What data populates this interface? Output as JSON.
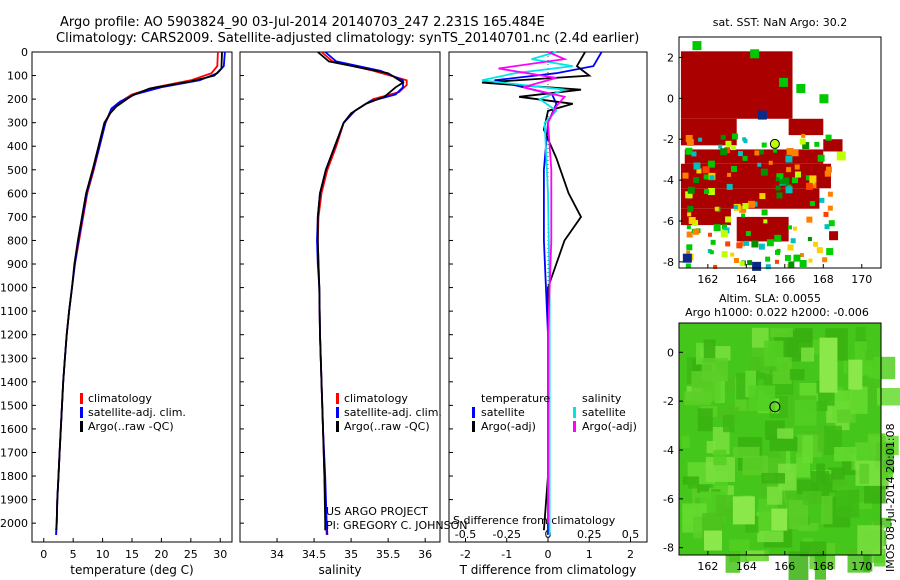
{
  "header": {
    "line1": "Argo profile: AO 5903824_90 03-Jul-2014 20140703_247 2.231S 165.484E",
    "line2": "Climatology: CARS2009. Satellite-adjusted climatology: synTS_20140701.nc (2.4d earlier)"
  },
  "chart_data": [
    {
      "type": "line",
      "name": "temperature",
      "xlabel": "temperature (deg C)",
      "ylabel": "depth",
      "xlim": [
        -2,
        32
      ],
      "ylim": [
        2080,
        0
      ],
      "xticks": [
        0,
        5,
        10,
        15,
        20,
        25,
        30
      ],
      "yticks": [
        0,
        100,
        200,
        300,
        400,
        500,
        600,
        700,
        800,
        900,
        1000,
        1100,
        1200,
        1300,
        1400,
        1500,
        1600,
        1700,
        1800,
        1900,
        2000
      ],
      "legend": [
        "climatology",
        "satellite-adj. clim.",
        "Argo(..raw -QC)"
      ],
      "series": [
        {
          "name": "climatology",
          "color": "#ff0000",
          "points": [
            [
              29.6,
              0
            ],
            [
              29.5,
              60
            ],
            [
              28.5,
              90
            ],
            [
              25,
              120
            ],
            [
              19,
              150
            ],
            [
              15,
              180
            ],
            [
              12.5,
              220
            ],
            [
              11.5,
              250
            ],
            [
              10.5,
              300
            ],
            [
              9.5,
              400
            ],
            [
              8.5,
              500
            ],
            [
              7.4,
              600
            ],
            [
              6.7,
              700
            ],
            [
              6,
              800
            ],
            [
              5.3,
              900
            ],
            [
              4.8,
              1000
            ],
            [
              4.3,
              1100
            ],
            [
              3.9,
              1200
            ],
            [
              3.6,
              1300
            ],
            [
              3.3,
              1400
            ],
            [
              3.1,
              1500
            ],
            [
              2.9,
              1600
            ],
            [
              2.7,
              1700
            ],
            [
              2.5,
              1800
            ],
            [
              2.3,
              1900
            ],
            [
              2.2,
              2000
            ],
            [
              2.1,
              2050
            ]
          ]
        },
        {
          "name": "satellite",
          "color": "#0000ff",
          "points": [
            [
              30.8,
              0
            ],
            [
              30.6,
              60
            ],
            [
              29.5,
              90
            ],
            [
              26.5,
              120
            ],
            [
              20,
              150
            ],
            [
              15.5,
              180
            ],
            [
              13,
              210
            ],
            [
              11.5,
              240
            ],
            [
              10.5,
              300
            ],
            [
              9.5,
              400
            ],
            [
              8.4,
              500
            ],
            [
              7.3,
              600
            ],
            [
              6.6,
              700
            ],
            [
              5.9,
              800
            ],
            [
              5.3,
              900
            ],
            [
              4.8,
              1000
            ],
            [
              4.3,
              1100
            ],
            [
              3.9,
              1200
            ],
            [
              3.6,
              1300
            ],
            [
              3.3,
              1400
            ],
            [
              3.1,
              1500
            ],
            [
              2.9,
              1600
            ],
            [
              2.7,
              1700
            ],
            [
              2.5,
              1800
            ],
            [
              2.3,
              1900
            ],
            [
              2.2,
              2000
            ],
            [
              2.1,
              2050
            ]
          ]
        },
        {
          "name": "Argo",
          "color": "#000000",
          "points": [
            [
              30.3,
              0
            ],
            [
              30.2,
              70
            ],
            [
              29,
              100
            ],
            [
              25,
              125
            ],
            [
              18,
              155
            ],
            [
              15,
              185
            ],
            [
              12.4,
              230
            ],
            [
              11.3,
              260
            ],
            [
              10.3,
              300
            ],
            [
              9.3,
              400
            ],
            [
              8.3,
              500
            ],
            [
              7.2,
              600
            ],
            [
              6.5,
              700
            ],
            [
              5.8,
              800
            ],
            [
              5.2,
              900
            ],
            [
              4.8,
              1000
            ],
            [
              4.3,
              1100
            ],
            [
              3.9,
              1200
            ],
            [
              3.6,
              1300
            ],
            [
              3.3,
              1400
            ],
            [
              3.1,
              1500
            ],
            [
              2.9,
              1600
            ],
            [
              2.7,
              1700
            ],
            [
              2.5,
              1800
            ],
            [
              2.3,
              1900
            ],
            [
              2.2,
              2000
            ],
            [
              2.1,
              2030
            ]
          ]
        }
      ]
    },
    {
      "type": "line",
      "name": "salinity",
      "xlabel": "salinity",
      "xlim": [
        33.5,
        36.2
      ],
      "ylim": [
        2080,
        0
      ],
      "xticks": [
        34,
        34.5,
        35,
        35.5,
        36
      ],
      "legend": [
        "climatology",
        "satellite-adj. clim.",
        "Argo(..raw -QC)"
      ],
      "series": [
        {
          "name": "climatology",
          "color": "#ff0000",
          "points": [
            [
              34.6,
              0
            ],
            [
              34.75,
              40
            ],
            [
              35.3,
              80
            ],
            [
              35.75,
              120
            ],
            [
              35.75,
              140
            ],
            [
              35.65,
              170
            ],
            [
              35.3,
              200
            ],
            [
              35.05,
              250
            ],
            [
              34.9,
              300
            ],
            [
              34.8,
              400
            ],
            [
              34.68,
              500
            ],
            [
              34.6,
              600
            ],
            [
              34.56,
              700
            ],
            [
              34.55,
              800
            ],
            [
              34.56,
              900
            ],
            [
              34.57,
              1000
            ],
            [
              34.58,
              1200
            ],
            [
              34.6,
              1400
            ],
            [
              34.62,
              1600
            ],
            [
              34.64,
              1800
            ],
            [
              34.66,
              2000
            ],
            [
              34.67,
              2050
            ]
          ]
        },
        {
          "name": "satellite",
          "color": "#0000ff",
          "points": [
            [
              34.65,
              0
            ],
            [
              34.8,
              40
            ],
            [
              35.4,
              80
            ],
            [
              35.7,
              120
            ],
            [
              35.7,
              150
            ],
            [
              35.6,
              180
            ],
            [
              35.25,
              210
            ],
            [
              35.05,
              250
            ],
            [
              34.9,
              300
            ],
            [
              34.78,
              400
            ],
            [
              34.66,
              500
            ],
            [
              34.58,
              600
            ],
            [
              34.55,
              700
            ],
            [
              34.54,
              800
            ],
            [
              34.55,
              900
            ],
            [
              34.57,
              1000
            ],
            [
              34.58,
              1200
            ],
            [
              34.6,
              1400
            ],
            [
              34.62,
              1600
            ],
            [
              34.65,
              1800
            ],
            [
              34.67,
              2000
            ],
            [
              34.68,
              2050
            ]
          ]
        },
        {
          "name": "Argo",
          "color": "#000000",
          "points": [
            [
              34.55,
              0
            ],
            [
              34.7,
              40
            ],
            [
              35.5,
              90
            ],
            [
              35.6,
              110
            ],
            [
              35.7,
              130
            ],
            [
              35.6,
              150
            ],
            [
              35.45,
              190
            ],
            [
              35.2,
              220
            ],
            [
              35.0,
              260
            ],
            [
              34.9,
              300
            ],
            [
              34.78,
              400
            ],
            [
              34.66,
              500
            ],
            [
              34.58,
              600
            ],
            [
              34.55,
              700
            ],
            [
              34.55,
              800
            ],
            [
              34.56,
              900
            ],
            [
              34.57,
              1000
            ],
            [
              34.58,
              1200
            ],
            [
              34.6,
              1400
            ],
            [
              34.62,
              1600
            ],
            [
              34.64,
              1800
            ],
            [
              34.65,
              2000
            ],
            [
              34.65,
              2030
            ]
          ]
        }
      ]
    },
    {
      "type": "line",
      "name": "difference from climatology",
      "xlabel": "T difference from climatology",
      "xlabel_top": "S difference from climatology",
      "xlim_T": [
        -2.4,
        2.4
      ],
      "xticks_T": [
        -2,
        -1,
        0,
        1,
        2
      ],
      "xlim_S": [
        -0.6,
        0.6
      ],
      "xticks_S": [
        "-0.5",
        "-0.25",
        "0",
        "0.25",
        "0.5"
      ],
      "legend_titles": [
        "temperature",
        "salinity"
      ],
      "legend": [
        "satellite",
        "Argo(-adj)",
        "satellite",
        "Argo(-adj)"
      ],
      "series": [
        {
          "name": "T satellite",
          "color": "#0000ff",
          "points": [
            [
              1.3,
              0
            ],
            [
              1.1,
              60
            ],
            [
              0.2,
              90
            ],
            [
              -1.3,
              120
            ],
            [
              -0.6,
              150
            ],
            [
              0.1,
              180
            ],
            [
              0.2,
              220
            ],
            [
              0,
              300
            ],
            [
              -0.1,
              500
            ],
            [
              -0.1,
              800
            ],
            [
              0,
              1200
            ],
            [
              0,
              2050
            ]
          ]
        },
        {
          "name": "T Argo",
          "color": "#000000",
          "points": [
            [
              0.9,
              0
            ],
            [
              0.7,
              60
            ],
            [
              1.0,
              100
            ],
            [
              -1.6,
              130
            ],
            [
              0.8,
              160
            ],
            [
              -0.7,
              190
            ],
            [
              0.6,
              220
            ],
            [
              0,
              250
            ],
            [
              -0.1,
              330
            ],
            [
              0.2,
              450
            ],
            [
              0.5,
              600
            ],
            [
              0.8,
              700
            ],
            [
              0.4,
              800
            ],
            [
              0.2,
              900
            ],
            [
              0,
              1000
            ],
            [
              0,
              1500
            ],
            [
              0,
              1800
            ],
            [
              -0.1,
              2030
            ]
          ]
        },
        {
          "name": "S satellite",
          "color": "#00e5e5",
          "points": [
            [
              0.05,
              0
            ],
            [
              -0.1,
              30
            ],
            [
              0.15,
              60
            ],
            [
              -0.2,
              90
            ],
            [
              -0.4,
              120
            ],
            [
              0.1,
              160
            ],
            [
              -0.05,
              200
            ],
            [
              0.05,
              250
            ],
            [
              -0.02,
              300
            ],
            [
              0,
              600
            ],
            [
              0.01,
              1000
            ],
            [
              0.01,
              2050
            ]
          ]
        },
        {
          "name": "S Argo",
          "color": "#ff00ff",
          "points": [
            [
              0,
              0
            ],
            [
              0.1,
              30
            ],
            [
              -0.3,
              70
            ],
            [
              0.05,
              110
            ],
            [
              -0.15,
              150
            ],
            [
              0.1,
              190
            ],
            [
              0.05,
              230
            ],
            [
              0,
              300
            ],
            [
              0.02,
              500
            ],
            [
              0.02,
              800
            ],
            [
              0,
              1200
            ],
            [
              0,
              2000
            ]
          ]
        }
      ]
    },
    {
      "type": "heatmap",
      "name": "SST map",
      "title": "sat. SST: NaN Argo: 30.2",
      "xticks": [
        162,
        164,
        166,
        168,
        170
      ],
      "yticks": [
        2,
        0,
        -2,
        -4,
        -6,
        -8
      ],
      "xlim": [
        160.5,
        171
      ],
      "ylim": [
        -8.3,
        3
      ],
      "marker": [
        165.484,
        -2.231
      ]
    },
    {
      "type": "heatmap",
      "name": "SLA map",
      "title_line1": "Altim. SLA: 0.0055",
      "title_line2": "Argo h1000: 0.022 h2000: -0.006",
      "xticks": [
        162,
        164,
        166,
        168,
        170
      ],
      "yticks": [
        0,
        -2,
        -4,
        -6,
        -8
      ],
      "xlim": [
        160.5,
        171
      ],
      "ylim": [
        -8.3,
        1.2
      ],
      "marker": [
        165.484,
        -2.231
      ]
    }
  ],
  "credit": {
    "line1": "US ARGO PROJECT",
    "line2": "PI: GREGORY C. JOHNSON"
  },
  "footer": "IMOS 08-Jul-2014 20:01:08"
}
